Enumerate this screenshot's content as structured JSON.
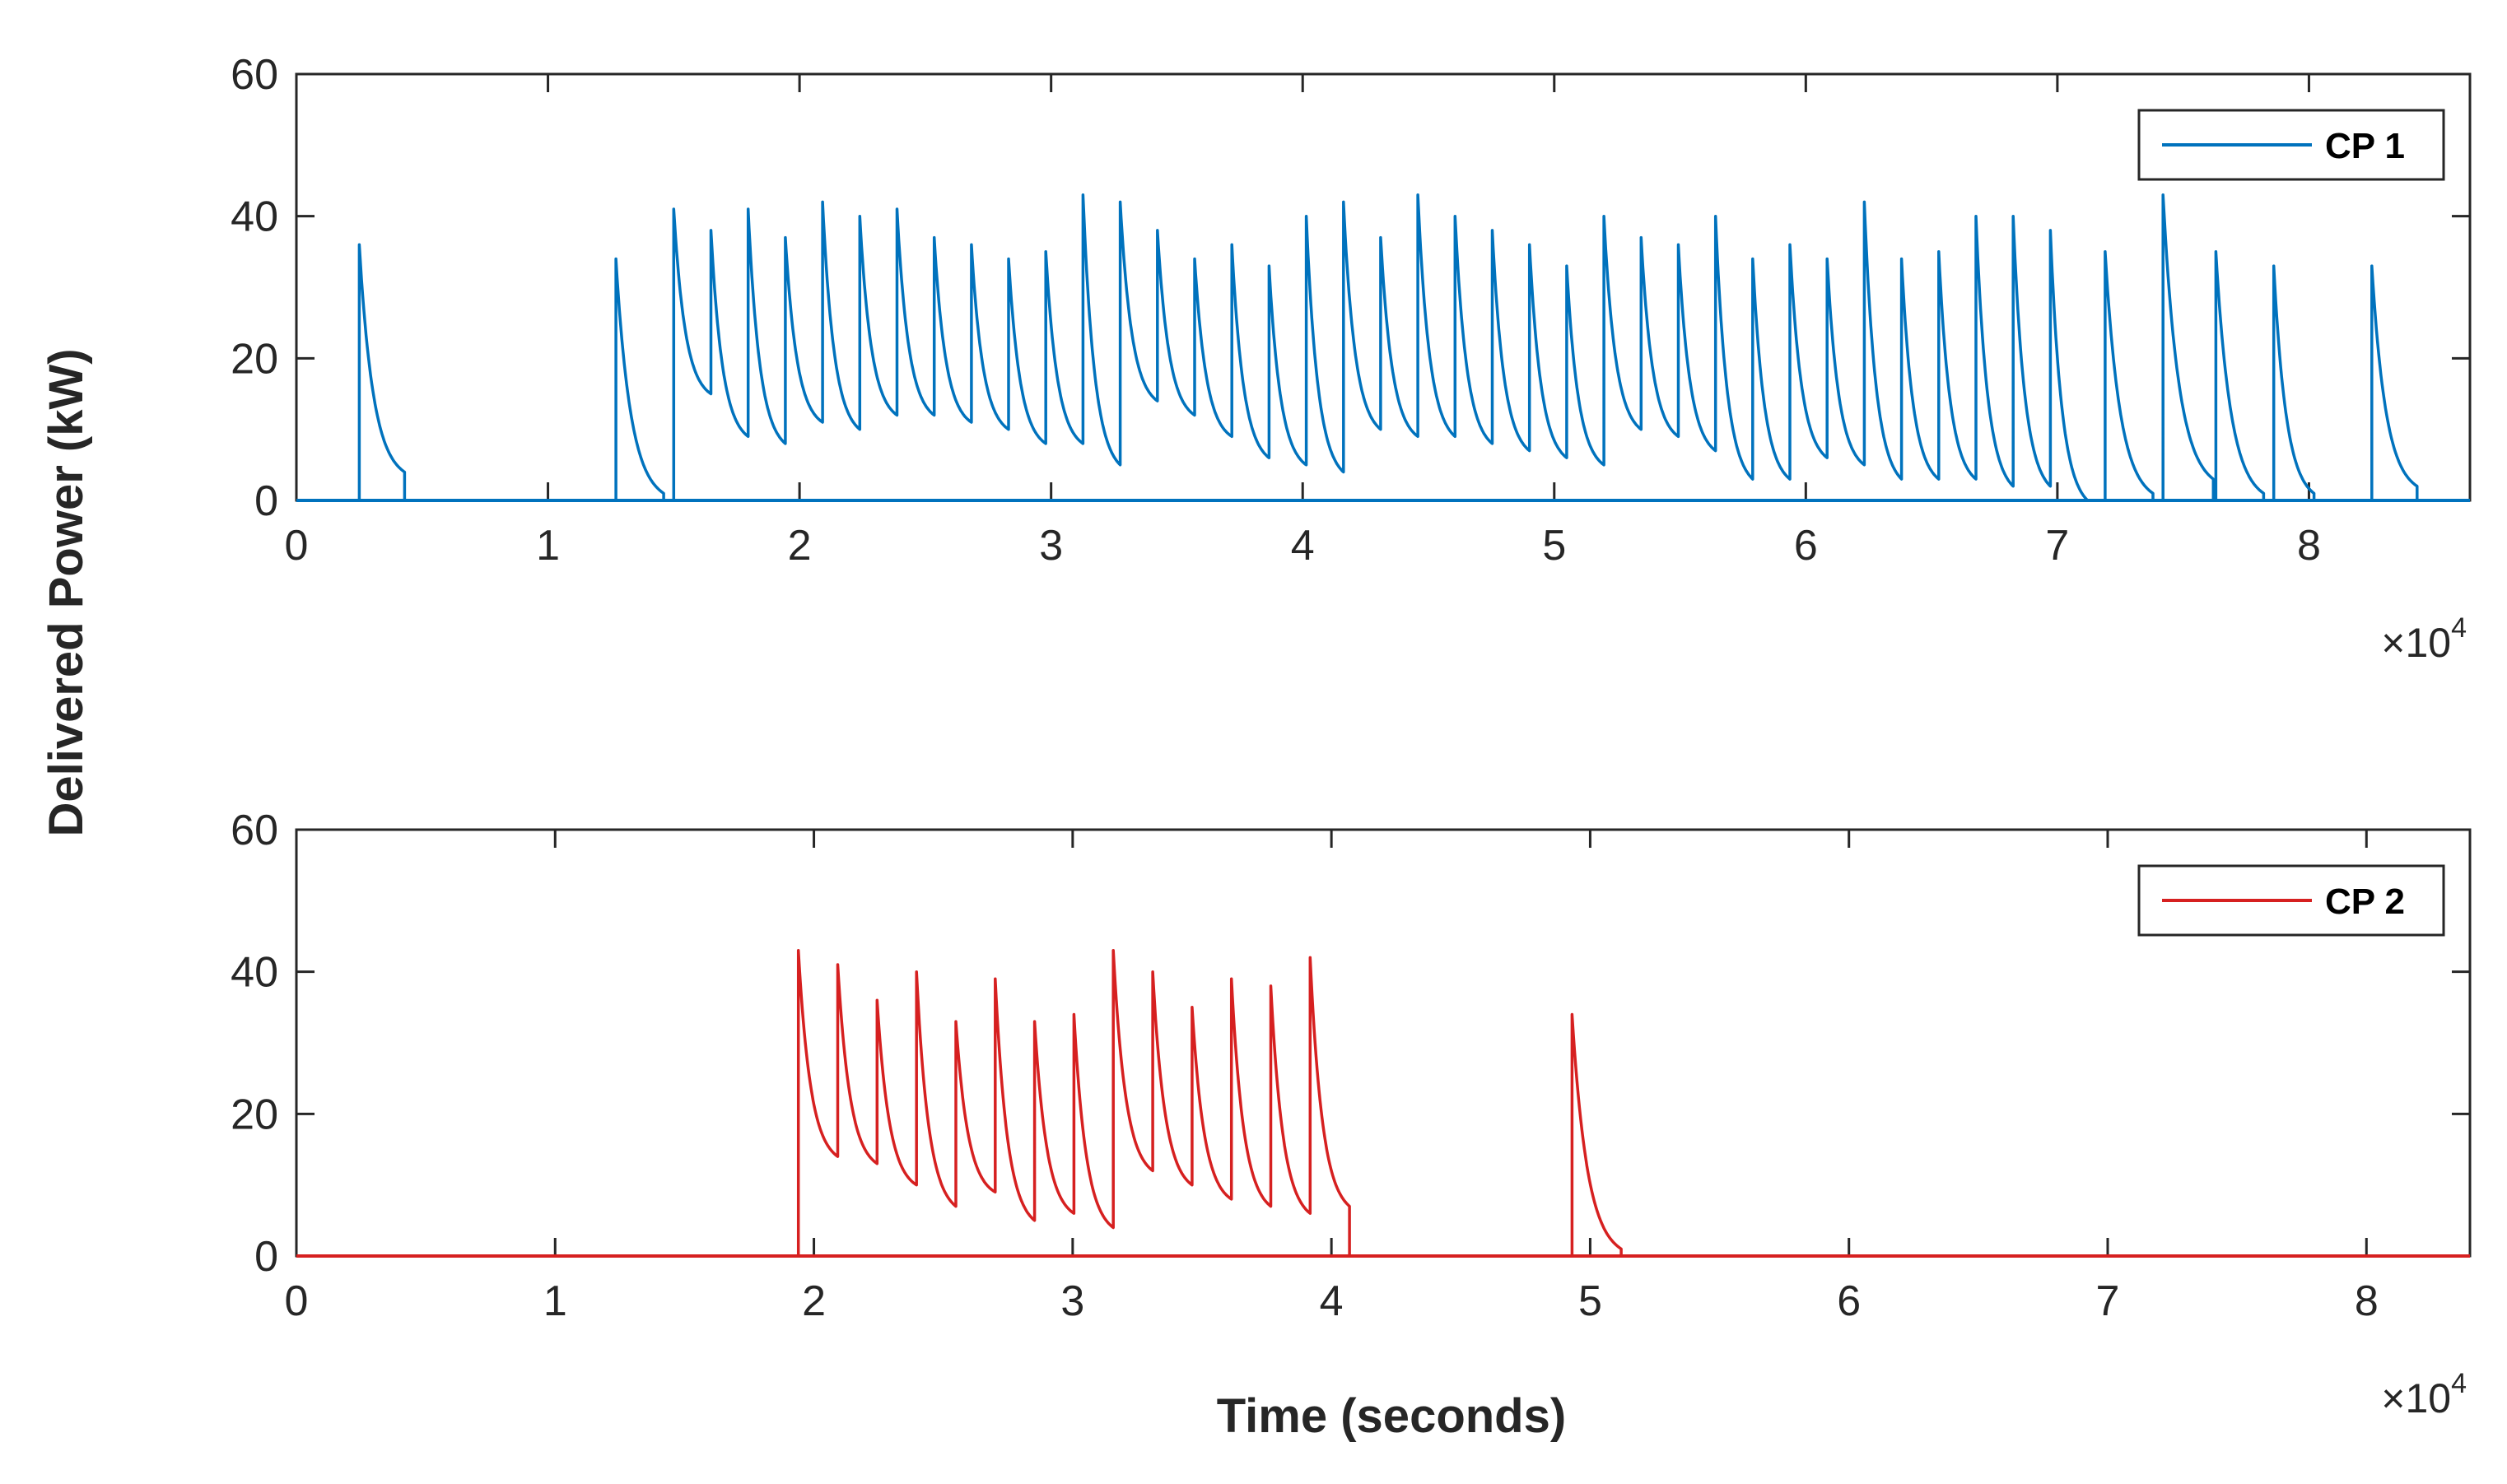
{
  "figure": {
    "ylabel": "Delivered Power (kW)",
    "xlabel": "Time (seconds)"
  },
  "chart_data": [
    {
      "type": "line",
      "xlabel": "",
      "ylabel": "Delivered Power (kW)",
      "xlim": [
        0,
        86400
      ],
      "ylim": [
        0,
        60
      ],
      "x_ticks": [
        0,
        1,
        2,
        3,
        4,
        5,
        6,
        7,
        8
      ],
      "y_ticks": [
        0,
        20,
        40,
        60
      ],
      "x_multiplier": {
        "base": "×10",
        "exponent": "4"
      },
      "grid": false,
      "legend": {
        "placement": "top-right",
        "entries": [
          "CP 1"
        ]
      },
      "series": [
        {
          "name": "CP 1",
          "color": "#0072BD",
          "sessions": [
            {
              "start": 2500,
              "end": 4300,
              "peaks": [
                36
              ],
              "end_value": 4
            },
            {
              "start": 12700,
              "end": 14600,
              "peaks": [
                34
              ],
              "end_value": 1
            },
            {
              "start": 15000,
              "end": 71200,
              "peaks": [
                41,
                38,
                41,
                37,
                42,
                40,
                41,
                37,
                36,
                34,
                35,
                43,
                42,
                38,
                34,
                36,
                33,
                40,
                42,
                37,
                43,
                40,
                38,
                36,
                33,
                40,
                37,
                36,
                40,
                34,
                36,
                34,
                42,
                34,
                35,
                40,
                40,
                38
              ],
              "valleys": [
                15,
                9,
                8,
                11,
                10,
                12,
                12,
                11,
                10,
                8,
                8,
                5,
                14,
                12,
                9,
                6,
                5,
                4,
                10,
                9,
                9,
                8,
                7,
                6,
                5,
                10,
                9,
                7,
                3,
                3,
                6,
                5,
                3,
                3,
                3,
                2,
                2
              ],
              "end_value": 0
            },
            {
              "start": 71900,
              "end": 73800,
              "peaks": [
                35
              ],
              "end_value": 1
            },
            {
              "start": 74200,
              "end": 76200,
              "peaks": [
                43
              ],
              "end_value": 3
            },
            {
              "start": 76300,
              "end": 78200,
              "peaks": [
                35
              ],
              "end_value": 1
            },
            {
              "start": 78600,
              "end": 80200,
              "peaks": [
                33
              ],
              "end_value": 1
            },
            {
              "start": 82500,
              "end": 84300,
              "peaks": [
                33
              ],
              "end_value": 2
            }
          ]
        }
      ]
    },
    {
      "type": "line",
      "xlabel": "Time (seconds)",
      "ylabel": "Delivered Power (kW)",
      "xlim": [
        0,
        84000
      ],
      "ylim": [
        0,
        60
      ],
      "x_ticks": [
        0,
        1,
        2,
        3,
        4,
        5,
        6,
        7,
        8
      ],
      "y_ticks": [
        0,
        20,
        40,
        60
      ],
      "x_multiplier": {
        "base": "×10",
        "exponent": "4"
      },
      "grid": false,
      "legend": {
        "placement": "top-right",
        "entries": [
          "CP 2"
        ]
      },
      "series": [
        {
          "name": "CP 2",
          "color": "#D62020",
          "sessions": [
            {
              "start": 19400,
              "end": 40700,
              "peaks": [
                43,
                41,
                36,
                40,
                33,
                39,
                33,
                34,
                43,
                40,
                35,
                39,
                38,
                42
              ],
              "valleys": [
                14,
                13,
                10,
                7,
                9,
                5,
                6,
                4,
                12,
                10,
                8,
                7,
                6
              ],
              "end_value": 7
            },
            {
              "start": 49300,
              "end": 51200,
              "peaks": [
                34
              ],
              "end_value": 1
            }
          ]
        }
      ]
    }
  ]
}
